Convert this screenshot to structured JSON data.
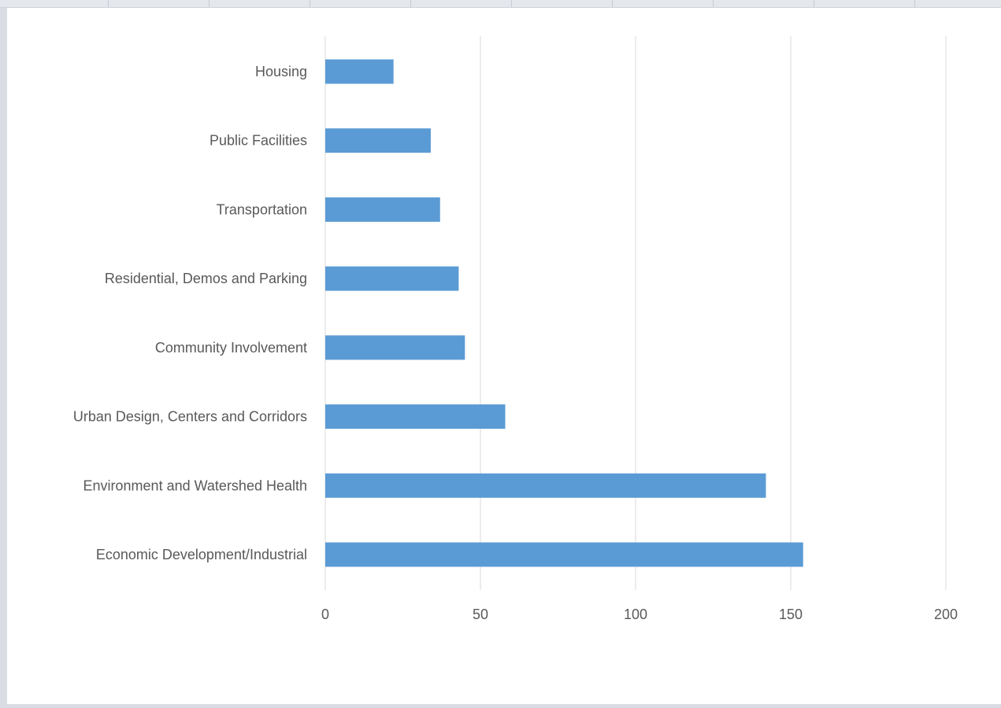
{
  "chart_data": {
    "type": "bar",
    "orientation": "horizontal",
    "categories": [
      "Housing",
      "Public Facilities",
      "Transportation",
      "Residential, Demos and Parking",
      "Community Involvement",
      "Urban Design, Centers and Corridors",
      "Environment and Watershed Health",
      "Economic Development/Industrial"
    ],
    "values": [
      22,
      34,
      37,
      43,
      45,
      58,
      142,
      154
    ],
    "x_ticks": [
      "0",
      "50",
      "100",
      "150",
      "200"
    ],
    "xlim": [
      0,
      200
    ],
    "grid": true,
    "bar_color": "#5b9bd5",
    "grid_color": "#d9d9d9",
    "text_color": "#595959"
  }
}
